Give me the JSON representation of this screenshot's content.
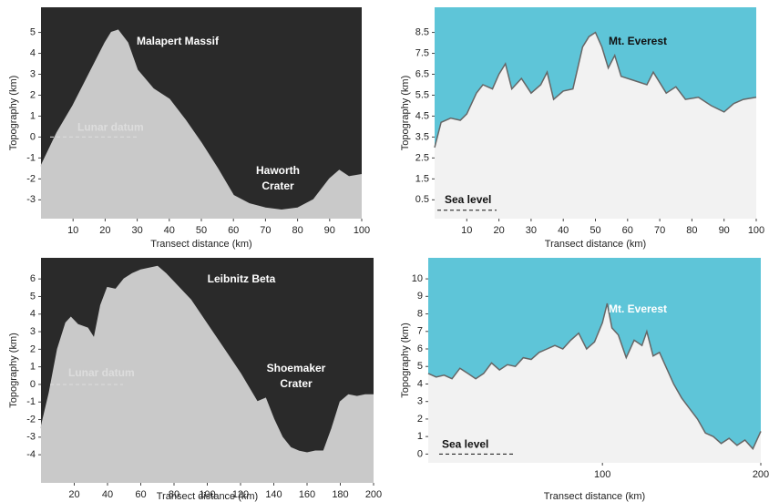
{
  "chart_data": [
    {
      "type": "area",
      "background": "#2a2a2a",
      "color": "#c9c9c9",
      "line_color": "#c9c9c9",
      "x_label": "Transect distance (km)",
      "y_label": "Topography (km)",
      "annotations": [
        [
          "Malapert Massif"
        ],
        [
          "Haworth",
          "Crater"
        ]
      ],
      "reference_line": {
        "label": "Lunar datum",
        "value": 0
      },
      "x": [
        0,
        5,
        10,
        15,
        20,
        22,
        24,
        27,
        30,
        35,
        40,
        45,
        50,
        55,
        60,
        65,
        70,
        75,
        80,
        85,
        90,
        93,
        96,
        100
      ],
      "values": [
        -1.4,
        0.2,
        1.5,
        3.0,
        4.5,
        5.0,
        5.1,
        4.5,
        3.2,
        2.3,
        1.8,
        0.8,
        -0.3,
        -1.5,
        -2.8,
        -3.2,
        -3.4,
        -3.5,
        -3.4,
        -3.0,
        -2.0,
        -1.6,
        -1.9,
        -1.8
      ],
      "xlim": [
        0,
        100
      ],
      "xticks": [
        10,
        20,
        30,
        40,
        50,
        60,
        70,
        80,
        90,
        100
      ],
      "ylim": [
        -3.9,
        6.2
      ],
      "yticks": [
        -3,
        -2,
        -1,
        0,
        1,
        2,
        3,
        4,
        5
      ]
    },
    {
      "type": "area",
      "background": "#5ec5d8",
      "color": "#f2f2f2",
      "line_color": "#666666",
      "x_label": "Transect distance (km)",
      "y_label": "Topography (km)",
      "annotations": [
        [
          "Mt. Everest"
        ]
      ],
      "reference_line": {
        "label": "Sea level",
        "value": 0
      },
      "x": [
        0,
        2,
        5,
        8,
        10,
        13,
        15,
        18,
        20,
        22,
        24,
        27,
        30,
        33,
        35,
        37,
        40,
        43,
        46,
        48,
        50,
        52,
        54,
        56,
        58,
        62,
        66,
        68,
        72,
        75,
        78,
        82,
        86,
        90,
        93,
        96,
        100
      ],
      "values": [
        3.0,
        4.2,
        4.4,
        4.3,
        4.6,
        5.6,
        6.0,
        5.8,
        6.5,
        7.0,
        5.8,
        6.3,
        5.6,
        6.0,
        6.6,
        5.3,
        5.7,
        5.8,
        7.8,
        8.3,
        8.5,
        7.8,
        6.8,
        7.4,
        6.4,
        6.2,
        6.0,
        6.6,
        5.6,
        5.9,
        5.3,
        5.4,
        5.0,
        4.7,
        5.1,
        5.3,
        5.4
      ],
      "xlim": [
        0,
        100
      ],
      "xticks": [
        10,
        20,
        30,
        40,
        50,
        60,
        70,
        80,
        90,
        100
      ],
      "ylim": [
        -0.4,
        9.7
      ],
      "yticks": [
        0.5,
        1.5,
        2.5,
        3.5,
        4.5,
        5.5,
        6.5,
        7.5,
        8.5
      ]
    },
    {
      "type": "area",
      "background": "#2a2a2a",
      "color": "#c9c9c9",
      "line_color": "#c9c9c9",
      "x_label": "Transect distance (km)",
      "y_label": "Topography (km)",
      "annotations": [
        [
          "Leibnitz Beta"
        ],
        [
          "Shoemaker",
          "Crater"
        ]
      ],
      "reference_line": {
        "label": "Lunar datum",
        "value": 0
      },
      "x": [
        0,
        5,
        10,
        15,
        18,
        22,
        28,
        32,
        36,
        40,
        45,
        50,
        55,
        60,
        70,
        75,
        80,
        85,
        90,
        100,
        110,
        120,
        130,
        135,
        140,
        145,
        150,
        155,
        160,
        165,
        170,
        175,
        180,
        185,
        190,
        195,
        200
      ],
      "values": [
        -2.5,
        -0.5,
        2.0,
        3.5,
        3.8,
        3.4,
        3.2,
        2.6,
        4.5,
        5.5,
        5.4,
        6.0,
        6.3,
        6.5,
        6.7,
        6.3,
        5.8,
        5.3,
        4.8,
        3.4,
        2.0,
        0.6,
        -1.0,
        -0.8,
        -2.0,
        -3.0,
        -3.6,
        -3.8,
        -3.9,
        -3.8,
        -3.8,
        -2.5,
        -1.0,
        -0.6,
        -0.7,
        -0.6,
        -0.6
      ],
      "xlim": [
        0,
        200
      ],
      "xticks": [
        20,
        40,
        60,
        80,
        100,
        120,
        140,
        160,
        180,
        200
      ],
      "ylim": [
        -5.6,
        7.2
      ],
      "yticks": [
        -4,
        -3,
        -2,
        -1,
        0,
        1,
        2,
        3,
        4,
        5,
        6
      ]
    },
    {
      "type": "area",
      "background": "#5ec5d8",
      "color": "#f2f2f2",
      "line_color": "#666666",
      "x_label": "Transect distance (km)",
      "y_label": "Topography (km)",
      "annotations": [
        [
          "Mt. Everest"
        ]
      ],
      "reference_line": {
        "label": "Sea level",
        "value": 0
      },
      "x": [
        -10,
        -5,
        0,
        5,
        10,
        15,
        20,
        25,
        30,
        35,
        40,
        45,
        50,
        55,
        60,
        65,
        70,
        75,
        80,
        85,
        90,
        95,
        100,
        103,
        106,
        110,
        115,
        120,
        125,
        128,
        132,
        136,
        140,
        145,
        150,
        155,
        160,
        165,
        170,
        175,
        180,
        185,
        190,
        195,
        200
      ],
      "values": [
        4.6,
        4.4,
        4.5,
        4.3,
        4.9,
        4.6,
        4.3,
        4.6,
        5.2,
        4.8,
        5.1,
        5.0,
        5.5,
        5.4,
        5.8,
        6.0,
        6.2,
        6.0,
        6.5,
        6.9,
        6.0,
        6.4,
        7.5,
        8.6,
        7.2,
        6.8,
        5.5,
        6.5,
        6.2,
        7.0,
        5.6,
        5.8,
        5.0,
        4.0,
        3.2,
        2.6,
        2.0,
        1.2,
        1.0,
        0.6,
        0.9,
        0.5,
        0.8,
        0.3,
        1.3
      ],
      "xlim": [
        -10,
        200
      ],
      "xticks": [
        100,
        200
      ],
      "ylim": [
        -0.5,
        11.2
      ],
      "yticks": [
        0,
        1,
        2,
        3,
        4,
        5,
        6,
        7,
        8,
        9,
        10
      ]
    }
  ]
}
